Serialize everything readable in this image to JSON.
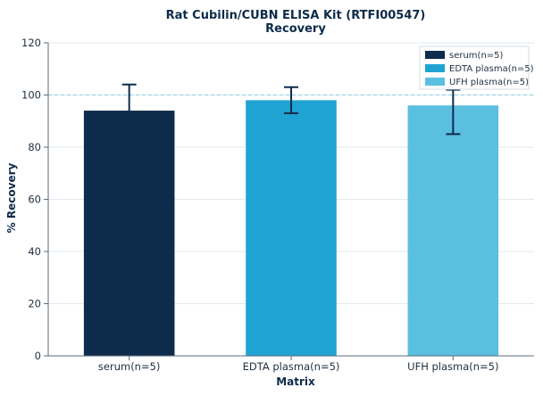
{
  "chart_data": {
    "type": "bar",
    "title": "Rat Cubilin/CUBN ELISA Kit (RTFI00547)",
    "subtitle": "Recovery",
    "xlabel": "Matrix",
    "ylabel": "% Recovery",
    "ylim": [
      0,
      120
    ],
    "yticks": [
      0,
      20,
      40,
      60,
      80,
      100,
      120
    ],
    "reference_line": 100,
    "grid": true,
    "legend_position": "top-right",
    "categories": [
      "serum(n=5)",
      "EDTA plasma(n=5)",
      "UFH plasma(n=5)"
    ],
    "values": [
      94,
      98,
      96
    ],
    "error_low": [
      84,
      93,
      85
    ],
    "error_high": [
      104,
      103,
      102
    ],
    "colors": [
      "#0d2b4a",
      "#1fa3d3",
      "#5bbfe0"
    ],
    "legend": [
      "serum(n=5)",
      "EDTA plasma(n=5)",
      "UFH plasma(n=5)"
    ]
  }
}
